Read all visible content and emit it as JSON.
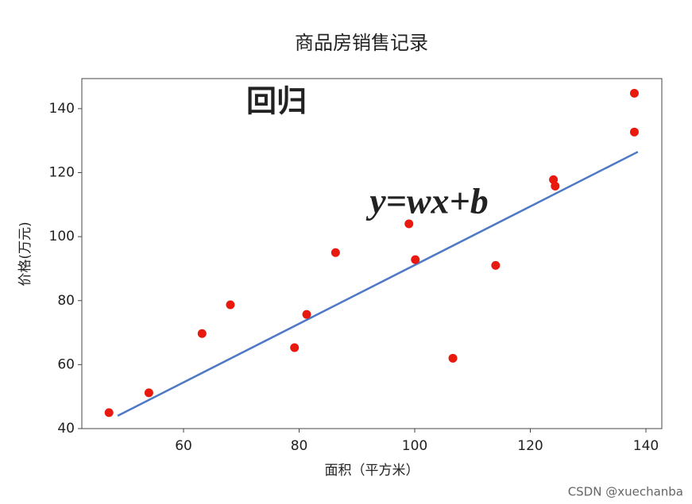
{
  "chart_data": {
    "type": "scatter",
    "title": "商品房销售记录",
    "x_label": "面积（平方米）",
    "y_label": "价格(万元)",
    "points": {
      "color": "#e8190f",
      "x": [
        47.1,
        54,
        63.2,
        68.1,
        79.2,
        81.3,
        86.3,
        99,
        100.1,
        106.6,
        114,
        124,
        124.3,
        138,
        138
      ],
      "y": [
        45,
        51.2,
        69.7,
        78.7,
        65.3,
        75.7,
        95,
        104,
        92.8,
        62,
        91,
        117.8,
        115.8,
        144.8,
        132.7
      ]
    },
    "fit_line": {
      "color": "#4e79c4",
      "x": [
        48.6,
        138.6
      ],
      "y": [
        44,
        126.5
      ]
    },
    "xlim": [
      42.4,
      142.75
    ],
    "ylim": [
      40,
      149.4
    ],
    "xticks": [
      60,
      80,
      100,
      120,
      140
    ],
    "yticks": [
      40,
      60,
      80,
      100,
      120,
      140
    ],
    "annotations": [
      {
        "text": "回归",
        "color": "#4472c4"
      },
      {
        "text": "y=wx+b",
        "color": "#e8190f"
      }
    ]
  },
  "watermark": "CSDN @xuechanba"
}
